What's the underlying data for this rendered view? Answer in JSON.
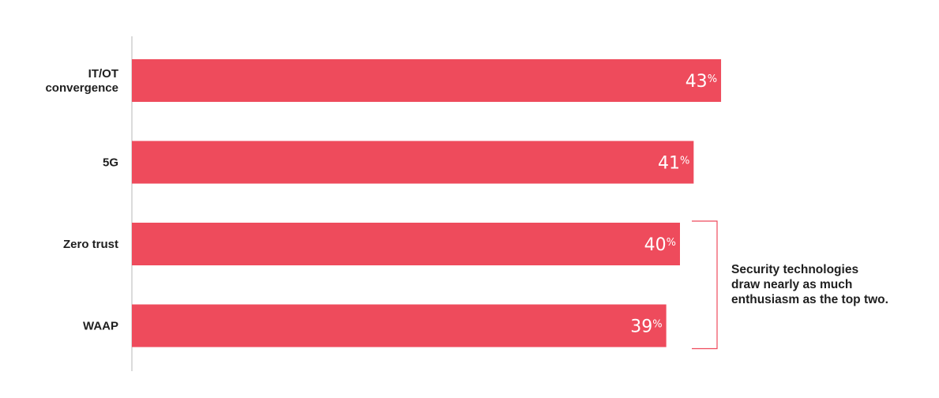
{
  "colors": {
    "bar": "#ee4b5c",
    "axis": "#b7b7b7",
    "bracket": "#ee4b5c",
    "text": "#1f1f1f"
  },
  "chart_data": {
    "type": "bar",
    "orientation": "horizontal",
    "categories": [
      [
        "IT/OT",
        "convergence"
      ],
      [
        "5G"
      ],
      [
        "Zero trust"
      ],
      [
        "WAAP"
      ]
    ],
    "values": [
      43,
      41,
      40,
      39
    ],
    "value_suffix": "%",
    "xlim": [
      0,
      45
    ],
    "grid": false,
    "title": "",
    "xlabel": "",
    "ylabel": "",
    "annotation": {
      "lines": [
        "Security technologies",
        "draw nearly as much",
        "enthusiasm as the top two."
      ],
      "bracket_categories": [
        "Zero trust",
        "WAAP"
      ]
    }
  }
}
